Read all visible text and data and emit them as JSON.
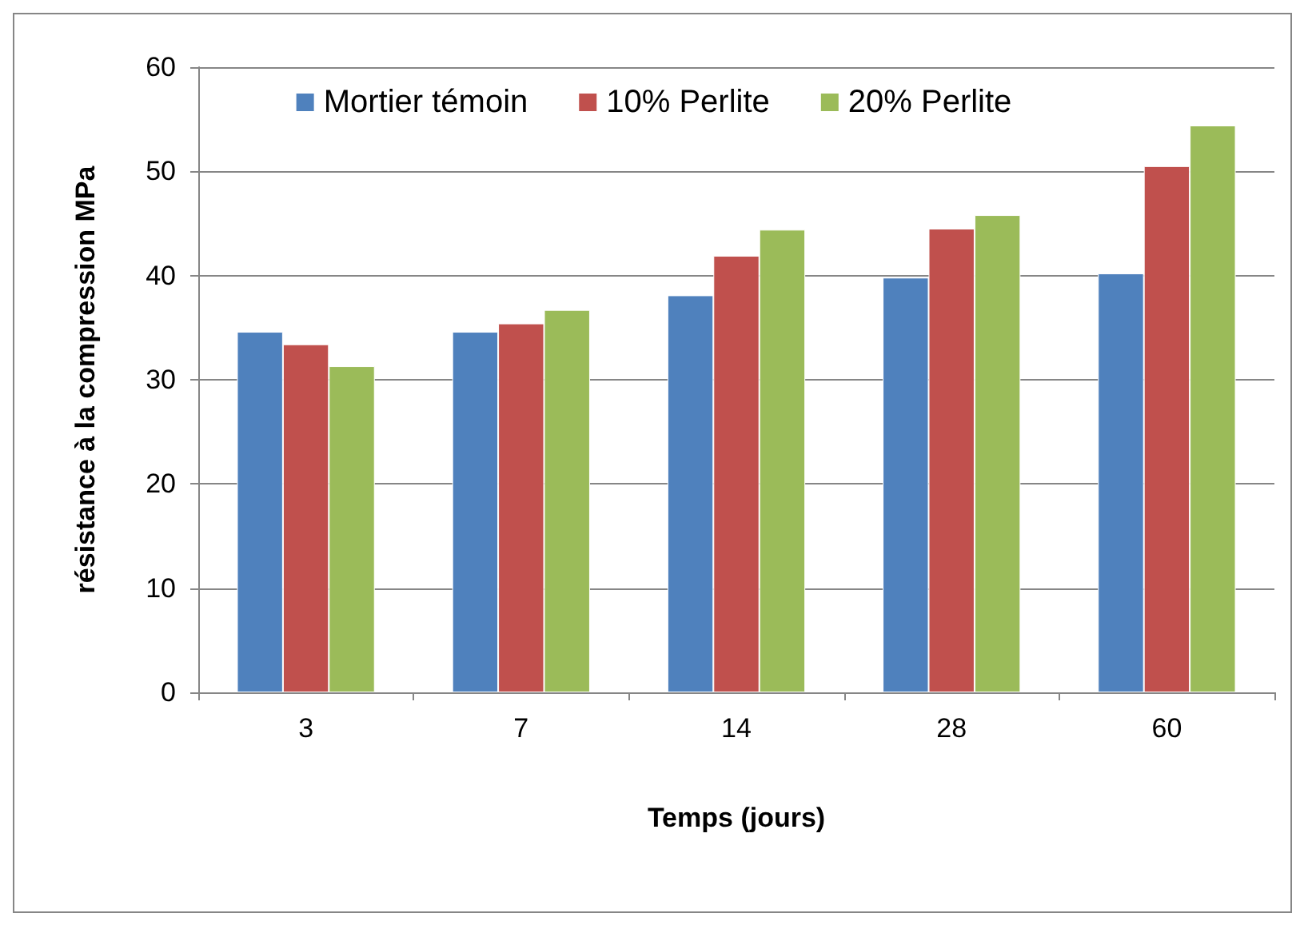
{
  "chart_data": {
    "type": "bar",
    "xlabel": "Temps (jours)",
    "ylabel": "résistance à la compression MPa",
    "categories": [
      "3",
      "7",
      "14",
      "28",
      "60"
    ],
    "series": [
      {
        "name": "Mortier témoin",
        "color": "#4f81bd",
        "values": [
          34.6,
          34.6,
          38.1,
          39.8,
          40.2
        ]
      },
      {
        "name": "10% Perlite",
        "color": "#c0504d",
        "values": [
          33.4,
          35.4,
          41.9,
          44.5,
          50.5
        ]
      },
      {
        "name": "20% Perlite",
        "color": "#9bbb59",
        "values": [
          31.3,
          36.7,
          44.4,
          45.8,
          54.4
        ]
      }
    ],
    "ylim": [
      0,
      60
    ],
    "yticks": [
      0,
      10,
      20,
      30,
      40,
      50,
      60
    ],
    "grid": "y",
    "legend": "top"
  }
}
